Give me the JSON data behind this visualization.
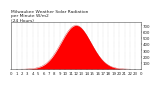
{
  "title_line1": "Milwaukee Weather Solar Radiation",
  "title_line2": "per Minute W/m2",
  "title_line3": "(24 Hours)",
  "title_fontsize": 3.2,
  "title_color": "#222222",
  "fill_color": "#ff0000",
  "line_color": "#cc0000",
  "background_color": "#ffffff",
  "grid_color": "#bbbbbb",
  "peak_x": 720,
  "total_points": 1440,
  "peak_value": 700,
  "sigma": 165,
  "ylim": [
    0,
    750
  ],
  "yticks": [
    100,
    200,
    300,
    400,
    500,
    600,
    700
  ],
  "xlim": [
    0,
    1440
  ],
  "xtick_interval": 60,
  "xlabel_fontsize": 2.8,
  "ylabel_fontsize": 2.8,
  "tick_label_color": "#222222"
}
